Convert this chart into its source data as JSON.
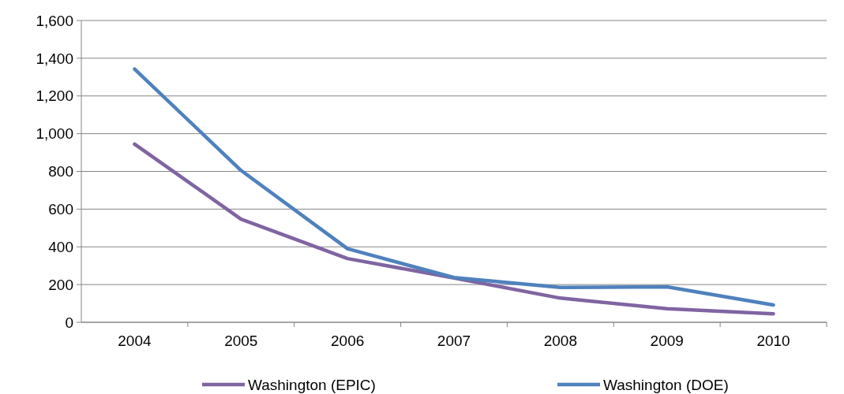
{
  "chart_data": {
    "type": "line",
    "categories": [
      "2004",
      "2005",
      "2006",
      "2007",
      "2008",
      "2009",
      "2010"
    ],
    "series": [
      {
        "name": "Washington (EPIC)",
        "color": "#8064a2",
        "values": [
          945,
          547,
          338,
          235,
          128,
          72,
          45
        ]
      },
      {
        "name": "Washington (DOE)",
        "color": "#4f81bd",
        "values": [
          1343,
          805,
          390,
          237,
          185,
          188,
          92
        ]
      }
    ],
    "ylim": [
      0,
      1600
    ],
    "yticks": [
      {
        "value": 0,
        "label": "0"
      },
      {
        "value": 200,
        "label": "200"
      },
      {
        "value": 400,
        "label": "400"
      },
      {
        "value": 600,
        "label": "600"
      },
      {
        "value": 800,
        "label": "800"
      },
      {
        "value": 1000,
        "label": "1,000"
      },
      {
        "value": 1200,
        "label": "1,200"
      },
      {
        "value": 1400,
        "label": "1,400"
      },
      {
        "value": 1600,
        "label": "1,600"
      }
    ],
    "grid": "y",
    "legend": "bottom",
    "marker": "none",
    "line_style": "solid"
  }
}
